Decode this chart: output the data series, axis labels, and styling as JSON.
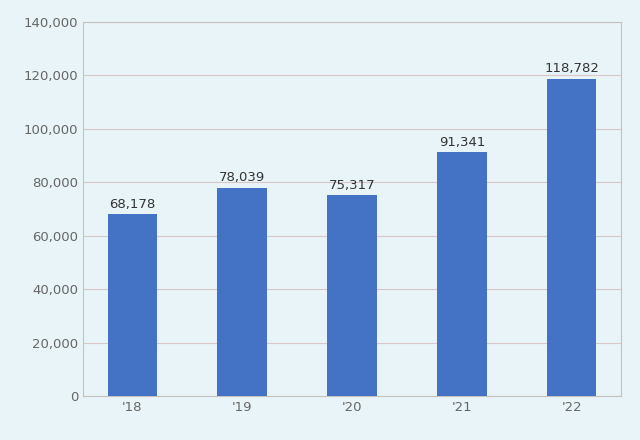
{
  "categories": [
    "'18",
    "'19",
    "'20",
    "'21",
    "'22"
  ],
  "values": [
    68178,
    78039,
    75317,
    91341,
    118782
  ],
  "bar_color": "#4472C4",
  "background_color": "#E8F4F8",
  "plot_bg_color": "#E8F4F8",
  "ylim": [
    0,
    140000
  ],
  "yticks": [
    0,
    20000,
    40000,
    60000,
    80000,
    100000,
    120000,
    140000
  ],
  "grid_color": "#D8C8C8",
  "grid_linewidth": 0.8,
  "label_fontsize": 9.5,
  "tick_fontsize": 9.5,
  "bar_width": 0.45,
  "border_color": "#C8C0C0",
  "border_linewidth": 0.8,
  "tick_color": "#666666",
  "value_label_color": "#333333"
}
